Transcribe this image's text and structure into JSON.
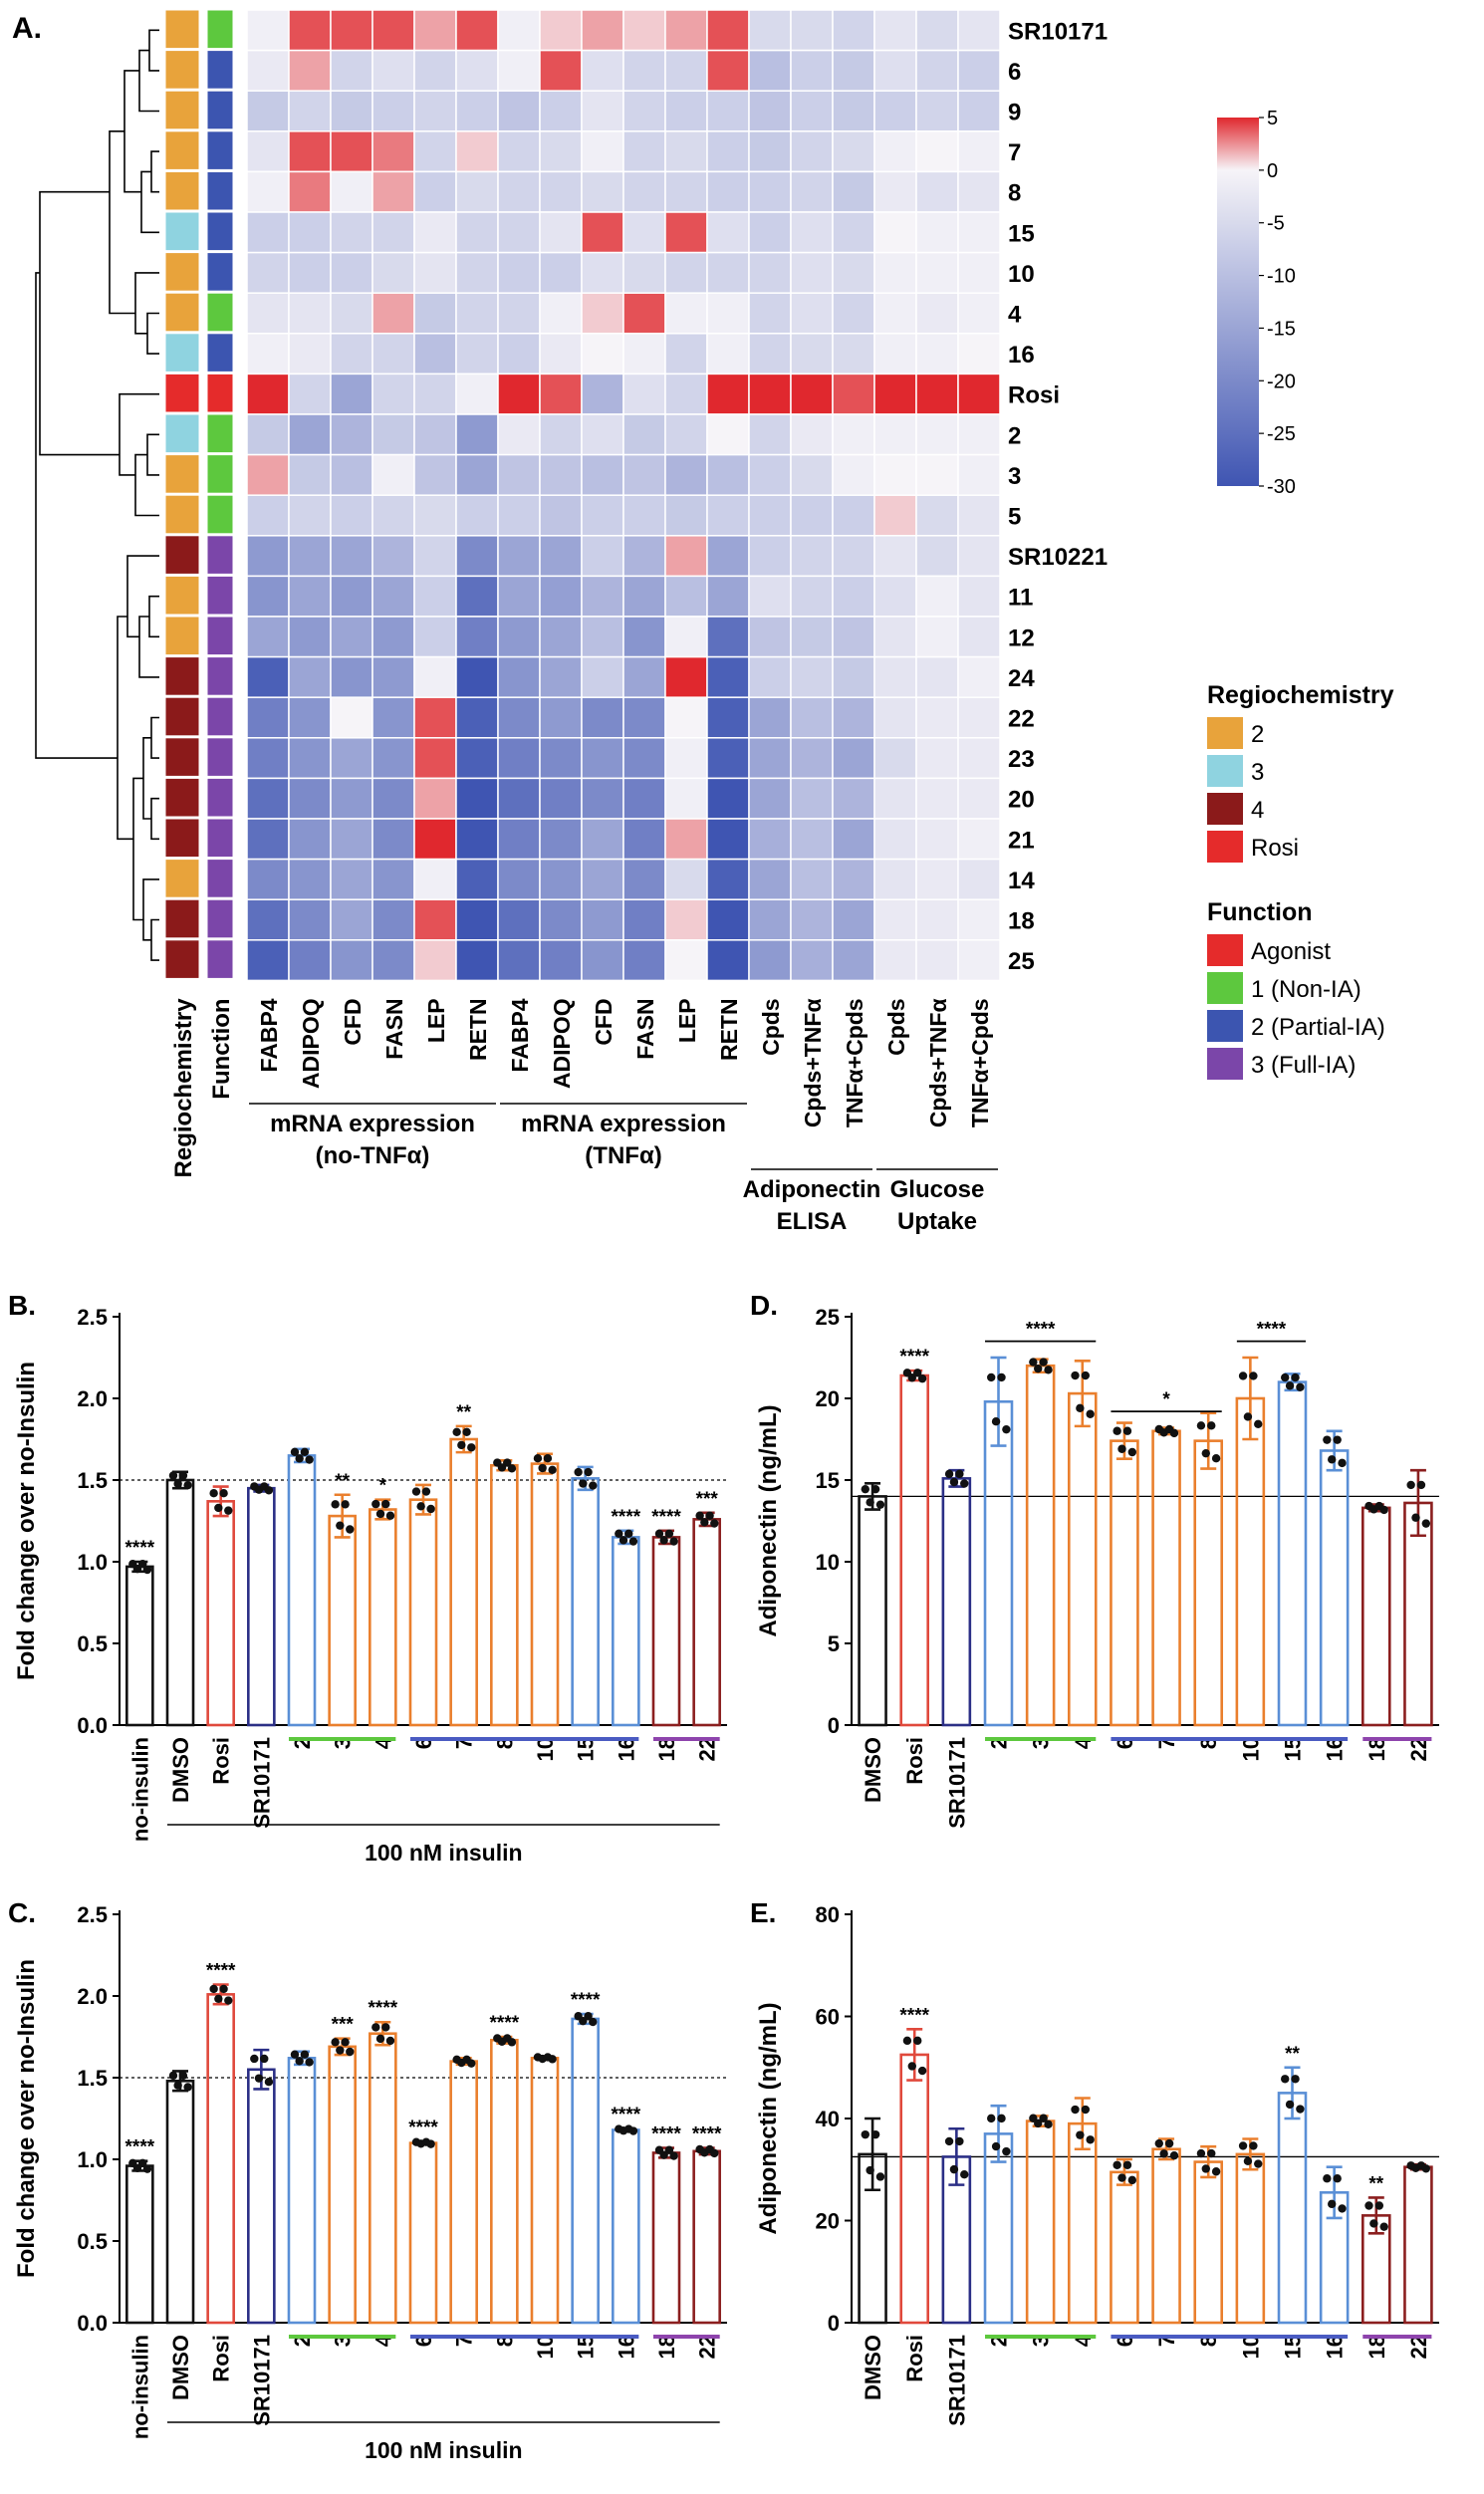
{
  "colors": {
    "regio_2": "#E8A33B",
    "regio_3": "#8FD3E0",
    "regio_4": "#8B1A1A",
    "regio_rosi": "#E52B2B",
    "func_agonist": "#E52B2B",
    "func_1": "#5DC83E",
    "func_2": "#3C55B0",
    "func_3": "#7B46A9",
    "bar_black": "#111111",
    "bar_red": "#E0493C",
    "bar_navy": "#2B2F86",
    "bar_lightblue": "#5A8FD6",
    "bar_orange": "#EA7F2D",
    "bar_darkred": "#8B1F1F",
    "bar_green": "#5DC83E",
    "bar_blue": "#4A5BC2",
    "bar_purple": "#8E44AD"
  },
  "chart_data": [
    {
      "id": "A",
      "type": "heatmap",
      "panel_label": "A.",
      "rows": [
        "SR10171",
        "6",
        "9",
        "7",
        "8",
        "15",
        "10",
        "4",
        "16",
        "Rosi",
        "2",
        "3",
        "5",
        "SR10221",
        "11",
        "12",
        "24",
        "22",
        "23",
        "20",
        "21",
        "14",
        "18",
        "25"
      ],
      "row_regiochemistry": [
        "2",
        "2",
        "2",
        "2",
        "2",
        "3",
        "2",
        "2",
        "3",
        "Rosi",
        "3",
        "2",
        "2",
        "4",
        "2",
        "2",
        "4",
        "4",
        "4",
        "4",
        "4",
        "2",
        "4",
        "4"
      ],
      "row_function": [
        "1",
        "2",
        "2",
        "2",
        "2",
        "2",
        "2",
        "1",
        "2",
        "Agonist",
        "1",
        "1",
        "1",
        "3",
        "3",
        "3",
        "3",
        "3",
        "3",
        "3",
        "3",
        "3",
        "3",
        "3"
      ],
      "columns": [
        "FABP4",
        "ADIPOQ",
        "CFD",
        "FASN",
        "LEP",
        "RETN",
        "FABP4",
        "ADIPOQ",
        "CFD",
        "FASN",
        "LEP",
        "RETN",
        "Cpds",
        "Cpds+TNFα",
        "TNFα+Cpds",
        "Cpds",
        "Cpds+TNFα",
        "TNFα+Cpds"
      ],
      "annotation_columns": [
        "Regiochemistry",
        "Function"
      ],
      "column_groups": [
        {
          "label_line1": "mRNA expression",
          "label_line2": "(no-TNFα)"
        },
        {
          "label_line1": "mRNA expression",
          "label_line2": "(TNFα)"
        },
        {
          "label_line1": "Adiponectin",
          "label_line2": "ELISA"
        },
        {
          "label_line1": "Glucose",
          "label_line2": "Uptake"
        }
      ],
      "values": [
        [
          -1,
          4,
          4,
          4,
          2,
          4,
          -1,
          1,
          2,
          1,
          2,
          4,
          -5,
          -5,
          -6,
          -3,
          -5,
          -3
        ],
        [
          -2,
          2,
          -6,
          -4,
          -6,
          -4,
          -1,
          4,
          -4,
          -6,
          -6,
          4,
          -10,
          -7,
          -8,
          -4,
          -6,
          -7
        ],
        [
          -8,
          -6,
          -8,
          -7,
          -6,
          -7,
          -9,
          -7,
          -3,
          -6,
          -7,
          -7,
          -9,
          -7,
          -8,
          -7,
          -6,
          -7
        ],
        [
          -3,
          4,
          4,
          3,
          -6,
          1,
          -6,
          -5,
          -1,
          -6,
          -5,
          -7,
          -8,
          -6,
          -5,
          -1,
          0,
          -1
        ],
        [
          -1,
          3,
          -1,
          2,
          -7,
          -5,
          -6,
          -6,
          -5,
          -6,
          -6,
          -7,
          -7,
          -6,
          -8,
          -2,
          -4,
          -3
        ],
        [
          -7,
          -7,
          -6,
          -6,
          -2,
          -6,
          -6,
          -3,
          4,
          -4,
          4,
          -4,
          -7,
          -4,
          -6,
          0,
          -1,
          -1
        ],
        [
          -6,
          -7,
          -7,
          -5,
          -3,
          -6,
          -7,
          -7,
          -4,
          -5,
          -6,
          -6,
          -6,
          -4,
          -5,
          -1,
          -1,
          -1
        ],
        [
          -3,
          -3,
          -5,
          2,
          -8,
          -6,
          -6,
          -1,
          1,
          4,
          -1,
          -1,
          -6,
          -4,
          -6,
          -1,
          -2,
          -1
        ],
        [
          -1,
          -2,
          -6,
          -6,
          -10,
          -6,
          -7,
          -2,
          0,
          -1,
          -6,
          -1,
          -6,
          -5,
          -5,
          -1,
          -1,
          0
        ],
        [
          5,
          -6,
          -15,
          -6,
          -6,
          -1,
          5,
          4,
          -12,
          -4,
          -6,
          5,
          5,
          5,
          4,
          5,
          5,
          5
        ],
        [
          -8,
          -15,
          -12,
          -8,
          -9,
          -17,
          -2,
          -6,
          -4,
          -8,
          -6,
          0,
          -6,
          -2,
          -1,
          -1,
          -1,
          -1
        ],
        [
          2,
          -8,
          -10,
          -1,
          -9,
          -15,
          -9,
          -9,
          -10,
          -9,
          -12,
          -10,
          -7,
          -5,
          -1,
          0,
          0,
          -1
        ],
        [
          -7,
          -6,
          -7,
          -6,
          -5,
          -7,
          -7,
          -9,
          -7,
          -7,
          -8,
          -7,
          -7,
          -7,
          -7,
          1,
          -5,
          -3
        ],
        [
          -17,
          -15,
          -15,
          -12,
          -6,
          -20,
          -15,
          -15,
          -7,
          -12,
          2,
          -15,
          -7,
          -6,
          -6,
          -3,
          -5,
          -3
        ],
        [
          -18,
          -15,
          -17,
          -15,
          -7,
          -25,
          -15,
          -16,
          -12,
          -15,
          -10,
          -15,
          -4,
          -6,
          -7,
          -4,
          -1,
          -3
        ],
        [
          -15,
          -17,
          -15,
          -17,
          -7,
          -22,
          -17,
          -15,
          -10,
          -18,
          -1,
          -25,
          -9,
          -8,
          -9,
          -3,
          -1,
          -3
        ],
        [
          -28,
          -15,
          -18,
          -17,
          -1,
          -30,
          -18,
          -15,
          -7,
          -15,
          5,
          -28,
          -7,
          -6,
          -8,
          -3,
          -3,
          -1
        ],
        [
          -22,
          -18,
          0,
          -18,
          4,
          -28,
          -20,
          -17,
          -20,
          -20,
          0,
          -28,
          -15,
          -10,
          -12,
          -3,
          -2,
          -2
        ],
        [
          -22,
          -18,
          -15,
          -18,
          4,
          -28,
          -22,
          -20,
          -18,
          -20,
          -1,
          -28,
          -15,
          -12,
          -15,
          -5,
          -2,
          -2
        ],
        [
          -25,
          -20,
          -17,
          -20,
          2,
          -30,
          -25,
          -22,
          -20,
          -22,
          -1,
          -30,
          -15,
          -10,
          -12,
          -3,
          -2,
          -2
        ],
        [
          -25,
          -18,
          -15,
          -20,
          5,
          -30,
          -22,
          -20,
          -15,
          -22,
          2,
          -30,
          -13,
          -10,
          -15,
          -3,
          -2,
          -1
        ],
        [
          -20,
          -18,
          -15,
          -18,
          -1,
          -28,
          -20,
          -18,
          -15,
          -20,
          -5,
          -28,
          -15,
          -10,
          -12,
          -3,
          -2,
          -3
        ],
        [
          -25,
          -20,
          -15,
          -20,
          4,
          -30,
          -25,
          -20,
          -17,
          -22,
          1,
          -30,
          -15,
          -12,
          -15,
          -2,
          -2,
          -1
        ],
        [
          -28,
          -22,
          -18,
          -20,
          1,
          -30,
          -25,
          -22,
          -18,
          -22,
          0,
          -30,
          -17,
          -13,
          -15,
          -2,
          -2,
          -1
        ]
      ],
      "color_scale": {
        "min": -30,
        "max": 5,
        "ticks": [
          5,
          0,
          -5,
          -10,
          -15,
          -20,
          -25,
          -30
        ]
      },
      "legend_regiochemistry": {
        "title": "Regiochemistry",
        "entries": [
          "2",
          "3",
          "4",
          "Rosi"
        ]
      },
      "legend_function": {
        "title": "Function",
        "entries": [
          "Agonist",
          "1 (Non-IA)",
          "2 (Partial-IA)",
          "3 (Full-IA)"
        ]
      }
    },
    {
      "id": "B",
      "type": "bar",
      "panel_label": "B.",
      "ylabel": "Fold change over no-Insulin",
      "ylim": [
        0,
        2.5
      ],
      "yticks": [
        0.0,
        0.5,
        1.0,
        1.5,
        2.0,
        2.5
      ],
      "reference_line": 1.5,
      "categories": [
        "no-insulin",
        "DMSO",
        "Rosi",
        "SR10171",
        "2",
        "3",
        "4",
        "6",
        "7",
        "8",
        "10",
        "15",
        "16",
        "18",
        "22"
      ],
      "values": [
        0.97,
        1.5,
        1.37,
        1.45,
        1.65,
        1.28,
        1.32,
        1.38,
        1.75,
        1.59,
        1.6,
        1.51,
        1.15,
        1.15,
        1.26
      ],
      "errors": [
        0.03,
        0.05,
        0.09,
        0.02,
        0.04,
        0.13,
        0.06,
        0.09,
        0.08,
        0.03,
        0.06,
        0.07,
        0.04,
        0.04,
        0.04
      ],
      "significance": [
        "****",
        "",
        "",
        "",
        "",
        "**",
        "*",
        "",
        "**",
        "",
        "",
        "",
        "****",
        "****",
        "***"
      ],
      "bar_colors": [
        "#111111",
        "#111111",
        "#E0493C",
        "#2B2F86",
        "#5A8FD6",
        "#EA7F2D",
        "#EA7F2D",
        "#EA7F2D",
        "#EA7F2D",
        "#EA7F2D",
        "#EA7F2D",
        "#5A8FD6",
        "#5A8FD6",
        "#8B1F1F",
        "#8B1F1F"
      ],
      "group_lines": [
        {
          "from": "2",
          "to": "4",
          "color": "#5DC83E"
        },
        {
          "from": "6",
          "to": "16",
          "color": "#4A5BC2"
        },
        {
          "from": "18",
          "to": "22",
          "color": "#8E44AD"
        }
      ],
      "bracket_label": "100 nM insulin"
    },
    {
      "id": "C",
      "type": "bar",
      "panel_label": "C.",
      "ylabel": "Fold change over no-Insulin",
      "ylim": [
        0,
        2.5
      ],
      "yticks": [
        0.0,
        0.5,
        1.0,
        1.5,
        2.0,
        2.5
      ],
      "reference_line": 1.5,
      "categories": [
        "no-insulin",
        "DMSO",
        "Rosi",
        "SR10171",
        "2",
        "3",
        "4",
        "6",
        "7",
        "8",
        "10",
        "15",
        "16",
        "18",
        "22"
      ],
      "values": [
        0.96,
        1.48,
        2.01,
        1.55,
        1.62,
        1.69,
        1.77,
        1.1,
        1.6,
        1.73,
        1.62,
        1.86,
        1.18,
        1.04,
        1.05
      ],
      "errors": [
        0.03,
        0.06,
        0.06,
        0.12,
        0.04,
        0.05,
        0.07,
        0.01,
        0.02,
        0.02,
        0.01,
        0.03,
        0.01,
        0.03,
        0.02
      ],
      "significance": [
        "****",
        "",
        "****",
        "",
        "",
        "***",
        "****",
        "****",
        "",
        "****",
        "",
        "****",
        "****",
        "****",
        "****"
      ],
      "bar_colors": [
        "#111111",
        "#111111",
        "#E0493C",
        "#2B2F86",
        "#5A8FD6",
        "#EA7F2D",
        "#EA7F2D",
        "#EA7F2D",
        "#EA7F2D",
        "#EA7F2D",
        "#EA7F2D",
        "#5A8FD6",
        "#5A8FD6",
        "#8B1F1F",
        "#8B1F1F"
      ],
      "group_lines": [
        {
          "from": "2",
          "to": "4",
          "color": "#5DC83E"
        },
        {
          "from": "6",
          "to": "16",
          "color": "#4A5BC2"
        },
        {
          "from": "18",
          "to": "22",
          "color": "#8E44AD"
        }
      ],
      "bracket_label": "100 nM insulin"
    },
    {
      "id": "D",
      "type": "bar",
      "panel_label": "D.",
      "ylabel": "Adiponectin (ng/mL)",
      "ylim": [
        0,
        25
      ],
      "yticks": [
        0,
        5,
        10,
        15,
        20,
        25
      ],
      "reference_line": 14,
      "categories": [
        "DMSO",
        "Rosi",
        "SR10171",
        "2",
        "3",
        "4",
        "6",
        "7",
        "8",
        "10",
        "15",
        "16",
        "18",
        "22"
      ],
      "values": [
        14.0,
        21.4,
        15.1,
        19.8,
        22.0,
        20.3,
        17.4,
        18.0,
        17.4,
        20.0,
        21.0,
        16.8,
        13.3,
        13.6
      ],
      "errors": [
        0.8,
        0.3,
        0.5,
        2.7,
        0.4,
        2.0,
        1.1,
        0.2,
        1.7,
        2.5,
        0.5,
        1.2,
        0.2,
        2.0
      ],
      "significance": [
        "",
        "****",
        "",
        "",
        "",
        "",
        "",
        "",
        "",
        "",
        "",
        "",
        "",
        ""
      ],
      "bar_colors": [
        "#111111",
        "#E0493C",
        "#2B2F86",
        "#5A8FD6",
        "#EA7F2D",
        "#EA7F2D",
        "#EA7F2D",
        "#EA7F2D",
        "#EA7F2D",
        "#EA7F2D",
        "#5A8FD6",
        "#5A8FD6",
        "#8B1F1F",
        "#8B1F1F"
      ],
      "sig_brackets": [
        {
          "from": "2",
          "to": "4",
          "label": "****",
          "y": 23.5
        },
        {
          "from": "6",
          "to": "8",
          "label": "*",
          "y": 19.2
        },
        {
          "from": "10",
          "to": "15",
          "label": "****",
          "y": 23.5
        }
      ],
      "group_lines": [
        {
          "from": "2",
          "to": "4",
          "color": "#5DC83E"
        },
        {
          "from": "6",
          "to": "16",
          "color": "#4A5BC2"
        },
        {
          "from": "18",
          "to": "22",
          "color": "#8E44AD"
        }
      ]
    },
    {
      "id": "E",
      "type": "bar",
      "panel_label": "E.",
      "ylabel": "Adiponectin (ng/mL)",
      "ylim": [
        0,
        80
      ],
      "yticks": [
        0,
        20,
        40,
        60,
        80
      ],
      "reference_line": 32.5,
      "categories": [
        "DMSO",
        "Rosi",
        "SR10171",
        "2",
        "3",
        "4",
        "6",
        "7",
        "8",
        "10",
        "15",
        "16",
        "18",
        "22"
      ],
      "values": [
        33.0,
        52.5,
        32.5,
        37.0,
        39.5,
        39.0,
        29.5,
        34.0,
        31.5,
        33.0,
        45.0,
        25.5,
        21.0,
        30.5
      ],
      "errors": [
        7.0,
        5.0,
        5.5,
        5.5,
        1.0,
        5.0,
        2.5,
        2.0,
        3.0,
        3.0,
        5.0,
        5.0,
        3.5,
        0.5
      ],
      "significance": [
        "",
        "****",
        "",
        "",
        "",
        "",
        "",
        "",
        "",
        "",
        "**",
        "",
        "**",
        ""
      ],
      "bar_colors": [
        "#111111",
        "#E0493C",
        "#2B2F86",
        "#5A8FD6",
        "#EA7F2D",
        "#EA7F2D",
        "#EA7F2D",
        "#EA7F2D",
        "#EA7F2D",
        "#EA7F2D",
        "#5A8FD6",
        "#5A8FD6",
        "#8B1F1F",
        "#8B1F1F"
      ],
      "group_lines": [
        {
          "from": "2",
          "to": "4",
          "color": "#5DC83E"
        },
        {
          "from": "6",
          "to": "16",
          "color": "#4A5BC2"
        },
        {
          "from": "18",
          "to": "22",
          "color": "#8E44AD"
        }
      ]
    }
  ]
}
